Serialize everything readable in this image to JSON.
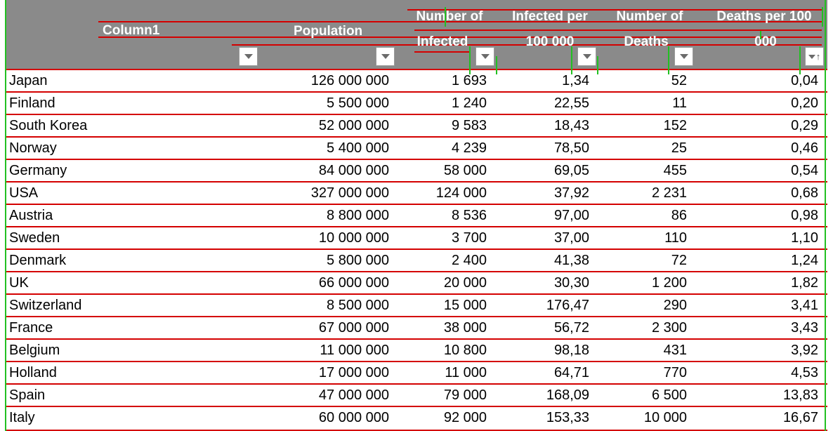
{
  "headers": [
    {
      "key": "country",
      "label": "Column1"
    },
    {
      "key": "population",
      "label": "Population"
    },
    {
      "key": "infected",
      "label": "Number of Infected"
    },
    {
      "key": "infected_per_100k",
      "label": "Infected per 100 000"
    },
    {
      "key": "deaths",
      "label": "Number of Deaths"
    },
    {
      "key": "deaths_per_100k",
      "label": "Deaths per 100 000"
    }
  ],
  "header_lines": {
    "infected": [
      "Number of",
      "Infected"
    ],
    "infected_per_100k": [
      "Infected per",
      "100 000"
    ],
    "deaths": [
      "Number of",
      "Deaths"
    ],
    "deaths_per_100k": [
      "Deaths per 100",
      "000"
    ]
  },
  "sort": {
    "column": "deaths_per_100k",
    "direction": "ascending",
    "indicator_icon": "sort-ascending-icon"
  },
  "rows": [
    {
      "country": "Japan",
      "population": "126 000 000",
      "infected": "1 693",
      "infected_per_100k": "1,34",
      "deaths": "52",
      "deaths_per_100k": "0,04"
    },
    {
      "country": "Finland",
      "population": "5 500 000",
      "infected": "1 240",
      "infected_per_100k": "22,55",
      "deaths": "11",
      "deaths_per_100k": "0,20"
    },
    {
      "country": "South Korea",
      "population": "52 000 000",
      "infected": "9 583",
      "infected_per_100k": "18,43",
      "deaths": "152",
      "deaths_per_100k": "0,29"
    },
    {
      "country": "Norway",
      "population": "5 400 000",
      "infected": "4 239",
      "infected_per_100k": "78,50",
      "deaths": "25",
      "deaths_per_100k": "0,46"
    },
    {
      "country": "Germany",
      "population": "84 000 000",
      "infected": "58 000",
      "infected_per_100k": "69,05",
      "deaths": "455",
      "deaths_per_100k": "0,54"
    },
    {
      "country": "USA",
      "population": "327 000 000",
      "infected": "124 000",
      "infected_per_100k": "37,92",
      "deaths": "2 231",
      "deaths_per_100k": "0,68"
    },
    {
      "country": "Austria",
      "population": "8 800 000",
      "infected": "8 536",
      "infected_per_100k": "97,00",
      "deaths": "86",
      "deaths_per_100k": "0,98"
    },
    {
      "country": "Sweden",
      "population": "10 000 000",
      "infected": "3 700",
      "infected_per_100k": "37,00",
      "deaths": "110",
      "deaths_per_100k": "1,10"
    },
    {
      "country": "Denmark",
      "population": "5 800 000",
      "infected": "2 400",
      "infected_per_100k": "41,38",
      "deaths": "72",
      "deaths_per_100k": "1,24"
    },
    {
      "country": "UK",
      "population": "66 000 000",
      "infected": "20 000",
      "infected_per_100k": "30,30",
      "deaths": "1 200",
      "deaths_per_100k": "1,82"
    },
    {
      "country": "Switzerland",
      "population": "8 500 000",
      "infected": "15 000",
      "infected_per_100k": "176,47",
      "deaths": "290",
      "deaths_per_100k": "3,41"
    },
    {
      "country": "France",
      "population": "67 000 000",
      "infected": "38 000",
      "infected_per_100k": "56,72",
      "deaths": "2 300",
      "deaths_per_100k": "3,43"
    },
    {
      "country": "Belgium",
      "population": "11 000 000",
      "infected": "10 800",
      "infected_per_100k": "98,18",
      "deaths": "431",
      "deaths_per_100k": "3,92"
    },
    {
      "country": "Holland",
      "population": "17 000 000",
      "infected": "11 000",
      "infected_per_100k": "64,71",
      "deaths": "770",
      "deaths_per_100k": "4,53"
    },
    {
      "country": "Spain",
      "population": "47 000 000",
      "infected": "79 000",
      "infected_per_100k": "168,09",
      "deaths": "6 500",
      "deaths_per_100k": "13,83"
    },
    {
      "country": "Italy",
      "population": "60 000 000",
      "infected": "92 000",
      "infected_per_100k": "153,33",
      "deaths": "10 000",
      "deaths_per_100k": "16,67"
    }
  ],
  "colors": {
    "header_bg": "#8a8a8a",
    "header_text": "#ffffff",
    "row_border": "#d40000",
    "annotation_green": "#22c022"
  }
}
